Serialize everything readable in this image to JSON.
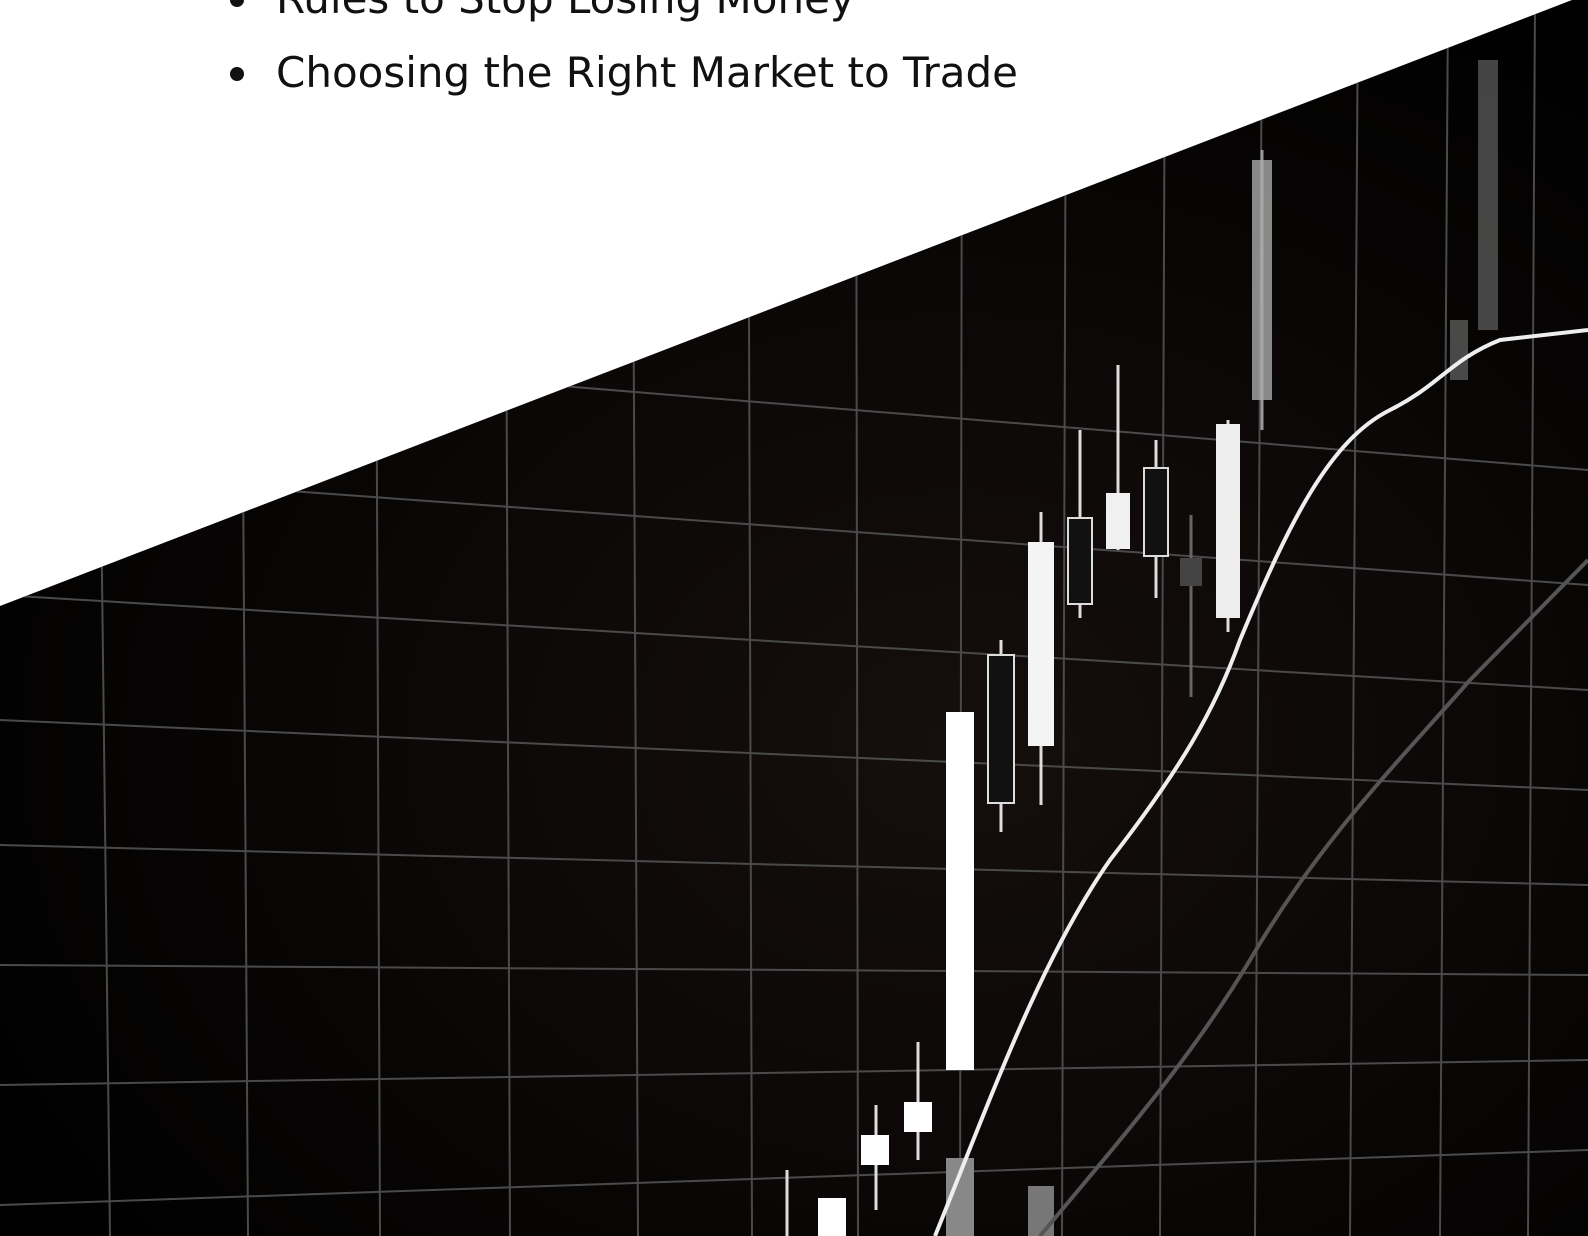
{
  "list": {
    "items": [
      "Rules to Stop Losing Money",
      "Choosing the Right Market to Trade"
    ]
  }
}
